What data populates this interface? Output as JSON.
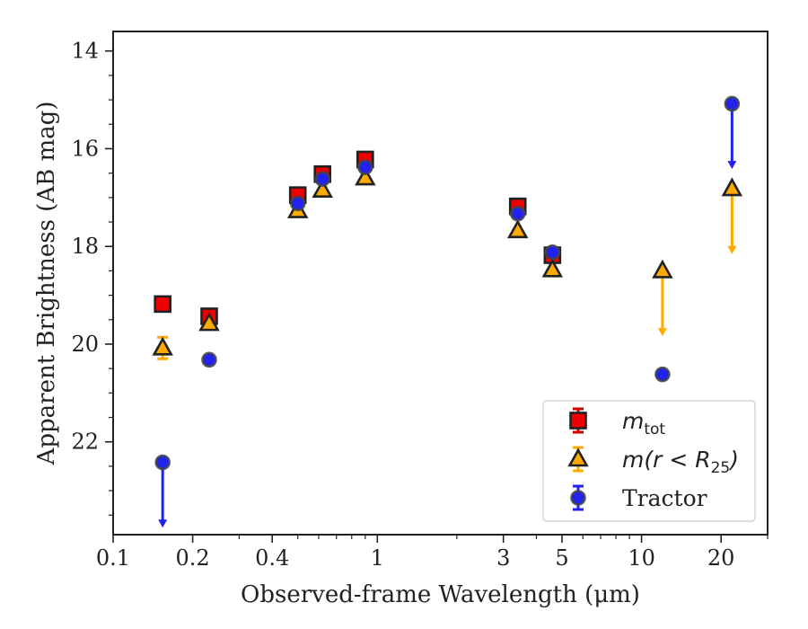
{
  "chart_data": {
    "type": "scatter",
    "title": "",
    "xlabel": "Observed-frame Wavelength (μm)",
    "ylabel": "Apparent Brightness (AB mag)",
    "xscale": "log",
    "xlim": [
      0.1,
      30
    ],
    "ylim": [
      23.9,
      13.6
    ],
    "y_inverted": true,
    "x_ticks": [
      0.1,
      0.2,
      0.4,
      1,
      3,
      5,
      10,
      20
    ],
    "x_tick_labels": [
      "0.1",
      "0.2",
      "0.4",
      "1",
      "3",
      "5",
      "10",
      "20"
    ],
    "y_ticks": [
      14,
      16,
      18,
      20,
      22
    ],
    "y_tick_labels": [
      "14",
      "16",
      "18",
      "20",
      "22"
    ],
    "grid": false,
    "legend_position": "lower-right",
    "series": [
      {
        "name": "m_tot",
        "legend_main": "m",
        "legend_sub": "tot",
        "marker": "square",
        "fill": "#ee0000",
        "errorbar_color": "#cc0000",
        "points": [
          {
            "x": 0.154,
            "y": 19.18
          },
          {
            "x": 0.231,
            "y": 19.43
          },
          {
            "x": 0.5,
            "y": 16.95
          },
          {
            "x": 0.62,
            "y": 16.52
          },
          {
            "x": 0.9,
            "y": 16.22
          },
          {
            "x": 3.4,
            "y": 17.18
          },
          {
            "x": 4.6,
            "y": 18.18
          }
        ]
      },
      {
        "name": "m(r < R_25)",
        "legend_main": "m(r < R",
        "legend_sub": "25",
        "legend_tail": ")",
        "marker": "triangle",
        "fill": "#ffaa00",
        "errorbar_color": "#ffaa00",
        "points": [
          {
            "x": 0.154,
            "y": 20.08,
            "yerr": 0.22
          },
          {
            "x": 0.231,
            "y": 19.58
          },
          {
            "x": 0.5,
            "y": 17.27
          },
          {
            "x": 0.62,
            "y": 16.85
          },
          {
            "x": 0.9,
            "y": 16.6
          },
          {
            "x": 3.4,
            "y": 17.68
          },
          {
            "x": 4.6,
            "y": 18.48
          },
          {
            "x": 12,
            "y": 18.5,
            "upper_limit": true
          },
          {
            "x": 22,
            "y": 16.82,
            "upper_limit": true
          }
        ]
      },
      {
        "name": "Tractor",
        "legend_main": "Tractor",
        "marker": "circle",
        "fill": "#2222ee",
        "errorbar_color": "#2222ee",
        "points": [
          {
            "x": 0.154,
            "y": 22.42,
            "upper_limit": true
          },
          {
            "x": 0.231,
            "y": 20.32
          },
          {
            "x": 0.5,
            "y": 17.12
          },
          {
            "x": 0.62,
            "y": 16.62
          },
          {
            "x": 0.9,
            "y": 16.38
          },
          {
            "x": 3.4,
            "y": 17.33
          },
          {
            "x": 4.6,
            "y": 18.12
          },
          {
            "x": 12,
            "y": 20.62
          },
          {
            "x": 22,
            "y": 15.08,
            "upper_limit": true
          }
        ]
      }
    ]
  }
}
